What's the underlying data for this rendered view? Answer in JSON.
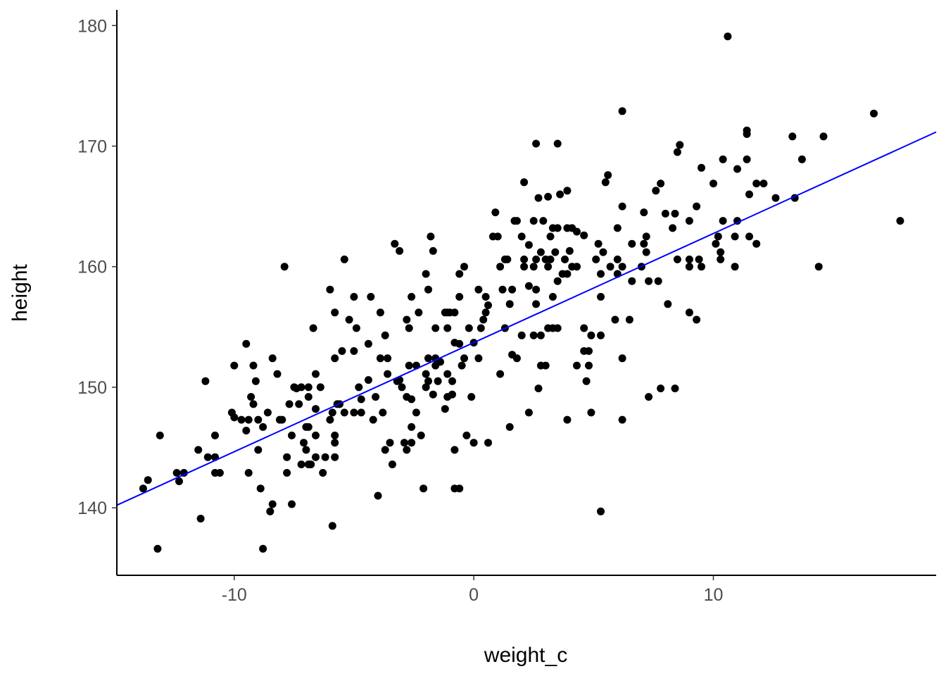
{
  "chart_data": {
    "type": "scatter",
    "xlabel": "weight_c",
    "ylabel": "height",
    "xlim": [
      -14.9,
      19.3
    ],
    "ylim": [
      134.4,
      181.3
    ],
    "x_ticks": [
      -10,
      0,
      10
    ],
    "x_tick_labels": [
      "-10",
      "0",
      "10"
    ],
    "y_ticks": [
      140,
      150,
      160,
      170,
      180
    ],
    "y_tick_labels": [
      "140",
      "150",
      "160",
      "170",
      "180"
    ],
    "grid": false,
    "legend": "none",
    "colors": {
      "points": "#000000",
      "fit_line": "#0000ff",
      "axis": "#000000"
    },
    "fit_line": {
      "intercept": 153.7,
      "slope": 0.905
    },
    "points": [
      [
        10.6,
        179.1
      ],
      [
        6.2,
        172.9
      ],
      [
        16.7,
        172.7
      ],
      [
        11.4,
        171.3
      ],
      [
        11.4,
        171.0
      ],
      [
        13.3,
        170.8
      ],
      [
        14.6,
        170.8
      ],
      [
        2.6,
        170.2
      ],
      [
        3.5,
        170.2
      ],
      [
        8.6,
        170.1
      ],
      [
        8.5,
        169.5
      ],
      [
        10.4,
        168.9
      ],
      [
        11.4,
        168.9
      ],
      [
        13.7,
        168.9
      ],
      [
        9.5,
        168.2
      ],
      [
        11.0,
        168.1
      ],
      [
        5.6,
        167.6
      ],
      [
        2.1,
        167.0
      ],
      [
        5.5,
        167.0
      ],
      [
        7.8,
        166.9
      ],
      [
        10.0,
        166.9
      ],
      [
        11.8,
        166.9
      ],
      [
        12.1,
        166.9
      ],
      [
        7.6,
        166.3
      ],
      [
        3.9,
        166.3
      ],
      [
        3.6,
        166.0
      ],
      [
        3.1,
        165.8
      ],
      [
        2.7,
        165.7
      ],
      [
        11.5,
        166.0
      ],
      [
        12.6,
        165.7
      ],
      [
        13.4,
        165.7
      ],
      [
        6.2,
        165.0
      ],
      [
        9.3,
        165.0
      ],
      [
        0.9,
        164.5
      ],
      [
        7.1,
        164.5
      ],
      [
        8.0,
        164.4
      ],
      [
        8.4,
        164.4
      ],
      [
        1.7,
        163.8
      ],
      [
        1.8,
        163.8
      ],
      [
        2.5,
        163.8
      ],
      [
        2.9,
        163.8
      ],
      [
        9.0,
        163.8
      ],
      [
        10.4,
        163.8
      ],
      [
        11.0,
        163.8
      ],
      [
        17.8,
        163.8
      ],
      [
        3.3,
        163.2
      ],
      [
        3.5,
        163.2
      ],
      [
        3.9,
        163.2
      ],
      [
        4.1,
        163.2
      ],
      [
        6.0,
        163.2
      ],
      [
        8.3,
        163.2
      ],
      [
        4.3,
        162.9
      ],
      [
        4.6,
        162.6
      ],
      [
        0.8,
        162.5
      ],
      [
        1.0,
        162.5
      ],
      [
        2.0,
        162.5
      ],
      [
        3.2,
        162.5
      ],
      [
        7.2,
        162.5
      ],
      [
        10.2,
        162.5
      ],
      [
        10.9,
        162.5
      ],
      [
        11.5,
        162.5
      ],
      [
        -1.8,
        162.5
      ],
      [
        -3.3,
        161.9
      ],
      [
        11.8,
        161.9
      ],
      [
        5.2,
        161.9
      ],
      [
        6.6,
        161.9
      ],
      [
        7.1,
        161.9
      ],
      [
        2.3,
        161.8
      ],
      [
        10.1,
        161.9
      ],
      [
        -3.1,
        161.3
      ],
      [
        -1.7,
        161.3
      ],
      [
        4.0,
        161.3
      ],
      [
        2.8,
        161.2
      ],
      [
        3.4,
        161.2
      ],
      [
        5.4,
        161.2
      ],
      [
        7.2,
        161.2
      ],
      [
        10.3,
        161.2
      ],
      [
        1.3,
        160.6
      ],
      [
        1.4,
        160.6
      ],
      [
        2.1,
        160.6
      ],
      [
        2.6,
        160.6
      ],
      [
        3.0,
        160.6
      ],
      [
        3.2,
        160.6
      ],
      [
        3.8,
        160.6
      ],
      [
        5.1,
        160.6
      ],
      [
        6.0,
        160.6
      ],
      [
        8.5,
        160.6
      ],
      [
        9.0,
        160.6
      ],
      [
        9.4,
        160.6
      ],
      [
        10.3,
        160.6
      ],
      [
        -5.4,
        160.6
      ],
      [
        1.1,
        160.0
      ],
      [
        2.1,
        160.0
      ],
      [
        2.5,
        160.0
      ],
      [
        3.1,
        160.0
      ],
      [
        4.1,
        160.0
      ],
      [
        4.3,
        160.0
      ],
      [
        5.7,
        160.0
      ],
      [
        6.2,
        160.0
      ],
      [
        7.0,
        160.0
      ],
      [
        9.0,
        160.0
      ],
      [
        9.5,
        160.0
      ],
      [
        10.9,
        160.0
      ],
      [
        14.4,
        160.0
      ],
      [
        -0.4,
        160.0
      ],
      [
        -7.9,
        160.0
      ],
      [
        -0.6,
        159.4
      ],
      [
        -2.0,
        159.4
      ],
      [
        3.7,
        159.4
      ],
      [
        3.9,
        159.4
      ],
      [
        6.0,
        159.4
      ],
      [
        5.3,
        159.4
      ],
      [
        3.5,
        158.8
      ],
      [
        6.6,
        158.8
      ],
      [
        7.3,
        158.8
      ],
      [
        7.7,
        158.8
      ],
      [
        2.3,
        158.4
      ],
      [
        2.6,
        158.1
      ],
      [
        -6.0,
        158.1
      ],
      [
        -1.9,
        158.1
      ],
      [
        0.2,
        158.1
      ],
      [
        1.2,
        158.1
      ],
      [
        1.6,
        158.1
      ],
      [
        3.3,
        157.5
      ],
      [
        5.3,
        157.5
      ],
      [
        -5.0,
        157.5
      ],
      [
        -4.3,
        157.5
      ],
      [
        -2.6,
        157.5
      ],
      [
        0.5,
        157.5
      ],
      [
        -0.6,
        157.5
      ],
      [
        8.1,
        156.9
      ],
      [
        2.6,
        156.9
      ],
      [
        1.5,
        156.9
      ],
      [
        0.6,
        156.8
      ],
      [
        -1.1,
        156.2
      ],
      [
        -1.0,
        156.2
      ],
      [
        -1.2,
        156.2
      ],
      [
        -0.8,
        156.2
      ],
      [
        0.5,
        156.2
      ],
      [
        -3.9,
        156.2
      ],
      [
        -2.3,
        156.2
      ],
      [
        -5.8,
        156.2
      ],
      [
        9.0,
        156.2
      ],
      [
        -2.8,
        155.6
      ],
      [
        -5.2,
        155.6
      ],
      [
        0.4,
        155.6
      ],
      [
        5.9,
        155.6
      ],
      [
        6.5,
        155.6
      ],
      [
        9.3,
        155.6
      ],
      [
        -0.2,
        154.9
      ],
      [
        1.3,
        154.9
      ],
      [
        0.3,
        154.9
      ],
      [
        -1.6,
        154.9
      ],
      [
        -1.1,
        154.9
      ],
      [
        -4.9,
        154.9
      ],
      [
        -2.7,
        154.9
      ],
      [
        3.1,
        154.9
      ],
      [
        3.3,
        154.9
      ],
      [
        3.5,
        154.9
      ],
      [
        4.6,
        154.9
      ],
      [
        -6.7,
        154.9
      ],
      [
        2.0,
        154.3
      ],
      [
        2.5,
        154.3
      ],
      [
        2.8,
        154.3
      ],
      [
        -3.7,
        154.3
      ],
      [
        4.9,
        154.3
      ],
      [
        5.3,
        154.3
      ],
      [
        0.0,
        153.7
      ],
      [
        -0.8,
        153.7
      ],
      [
        -0.6,
        153.6
      ],
      [
        -4.4,
        153.6
      ],
      [
        -9.5,
        153.6
      ],
      [
        -5.5,
        153.0
      ],
      [
        -5.0,
        153.0
      ],
      [
        4.6,
        153.0
      ],
      [
        4.8,
        153.0
      ],
      [
        1.6,
        152.7
      ],
      [
        0.2,
        152.4
      ],
      [
        -3.9,
        152.4
      ],
      [
        -3.6,
        152.4
      ],
      [
        -1.9,
        152.4
      ],
      [
        -1.6,
        152.4
      ],
      [
        -0.4,
        152.4
      ],
      [
        1.8,
        152.4
      ],
      [
        6.2,
        152.4
      ],
      [
        -8.4,
        152.4
      ],
      [
        -5.8,
        152.4
      ],
      [
        -1.4,
        152.1
      ],
      [
        4.8,
        151.8
      ],
      [
        2.8,
        151.8
      ],
      [
        3.0,
        151.8
      ],
      [
        -2.4,
        151.8
      ],
      [
        -2.7,
        151.8
      ],
      [
        -10.0,
        151.8
      ],
      [
        -9.2,
        151.8
      ],
      [
        4.3,
        151.8
      ],
      [
        -0.5,
        151.8
      ],
      [
        -1.6,
        151.8
      ],
      [
        -8.2,
        151.1
      ],
      [
        -3.6,
        151.1
      ],
      [
        1.1,
        151.1
      ],
      [
        -1.1,
        151.1
      ],
      [
        -6.6,
        151.1
      ],
      [
        -2.0,
        151.1
      ],
      [
        -4.4,
        150.6
      ],
      [
        -3.1,
        150.6
      ],
      [
        -3.2,
        150.5
      ],
      [
        -11.2,
        150.5
      ],
      [
        -9.1,
        150.5
      ],
      [
        4.7,
        150.5
      ],
      [
        -0.9,
        150.5
      ],
      [
        -1.5,
        150.5
      ],
      [
        -1.9,
        150.5
      ],
      [
        -4.8,
        150.0
      ],
      [
        -3.0,
        150.0
      ],
      [
        -7.5,
        150.0
      ],
      [
        -7.2,
        150.0
      ],
      [
        -6.9,
        150.0
      ],
      [
        -6.4,
        150.0
      ],
      [
        -2.0,
        150.0
      ],
      [
        -7.4,
        149.9
      ],
      [
        2.7,
        149.9
      ],
      [
        7.8,
        149.9
      ],
      [
        8.4,
        149.9
      ],
      [
        -1.7,
        149.4
      ],
      [
        -0.9,
        149.4
      ],
      [
        -4.1,
        149.2
      ],
      [
        -2.8,
        149.2
      ],
      [
        -0.1,
        149.2
      ],
      [
        7.3,
        149.2
      ],
      [
        -9.3,
        149.2
      ],
      [
        -6.9,
        149.2
      ],
      [
        -1.1,
        149.2
      ],
      [
        -4.7,
        149.0
      ],
      [
        -2.6,
        149.0
      ],
      [
        -5.6,
        148.6
      ],
      [
        -5.7,
        148.6
      ],
      [
        -9.2,
        148.6
      ],
      [
        -7.3,
        148.6
      ],
      [
        -7.7,
        148.6
      ],
      [
        -6.6,
        148.2
      ],
      [
        -1.2,
        148.2
      ],
      [
        -2.4,
        147.9
      ],
      [
        -3.8,
        147.9
      ],
      [
        -5.0,
        147.9
      ],
      [
        -4.7,
        147.9
      ],
      [
        -5.4,
        147.9
      ],
      [
        -5.9,
        147.9
      ],
      [
        -8.6,
        147.9
      ],
      [
        -10.1,
        147.9
      ],
      [
        2.3,
        147.9
      ],
      [
        4.9,
        147.9
      ],
      [
        -10.0,
        147.5
      ],
      [
        -9.4,
        147.3
      ],
      [
        -9.7,
        147.3
      ],
      [
        -8.1,
        147.3
      ],
      [
        -8.0,
        147.3
      ],
      [
        -9.0,
        147.3
      ],
      [
        -4.2,
        147.3
      ],
      [
        -6.0,
        147.3
      ],
      [
        3.9,
        147.3
      ],
      [
        6.2,
        147.3
      ],
      [
        -2.6,
        146.7
      ],
      [
        -6.9,
        146.7
      ],
      [
        -7.0,
        146.7
      ],
      [
        -8.8,
        146.7
      ],
      [
        -9.5,
        146.4
      ],
      [
        -5.8,
        146.0
      ],
      [
        -10.8,
        146.0
      ],
      [
        -13.1,
        146.0
      ],
      [
        -7.6,
        146.0
      ],
      [
        -6.6,
        146.0
      ],
      [
        -2.2,
        146.0
      ],
      [
        -0.3,
        146.0
      ],
      [
        1.5,
        146.7
      ],
      [
        -3.5,
        145.4
      ],
      [
        -2.9,
        145.4
      ],
      [
        -2.6,
        145.4
      ],
      [
        -7.1,
        145.4
      ],
      [
        -5.8,
        145.4
      ],
      [
        0.0,
        145.4
      ],
      [
        0.6,
        145.4
      ],
      [
        -0.8,
        144.8
      ],
      [
        -7.0,
        144.8
      ],
      [
        -9.0,
        144.8
      ],
      [
        -11.5,
        144.8
      ],
      [
        -3.7,
        144.8
      ],
      [
        -2.8,
        144.8
      ],
      [
        -5.8,
        144.2
      ],
      [
        -6.6,
        144.2
      ],
      [
        -6.2,
        144.2
      ],
      [
        -7.8,
        144.2
      ],
      [
        -11.1,
        144.2
      ],
      [
        -10.8,
        144.2
      ],
      [
        -6.9,
        143.6
      ],
      [
        -6.8,
        143.6
      ],
      [
        -3.4,
        143.6
      ],
      [
        -7.2,
        143.6
      ],
      [
        -10.8,
        142.9
      ],
      [
        -10.6,
        142.9
      ],
      [
        -12.4,
        142.9
      ],
      [
        -12.1,
        142.9
      ],
      [
        -9.4,
        142.9
      ],
      [
        -7.8,
        142.9
      ],
      [
        -6.3,
        142.9
      ],
      [
        -13.6,
        142.3
      ],
      [
        -12.3,
        142.2
      ],
      [
        -13.8,
        141.6
      ],
      [
        -8.9,
        141.6
      ],
      [
        -2.1,
        141.6
      ],
      [
        -0.8,
        141.6
      ],
      [
        -0.6,
        141.6
      ],
      [
        -4.0,
        141.0
      ],
      [
        -8.4,
        140.3
      ],
      [
        -7.6,
        140.3
      ],
      [
        -8.5,
        139.7
      ],
      [
        5.3,
        139.7
      ],
      [
        -11.4,
        139.1
      ],
      [
        -5.9,
        138.5
      ],
      [
        -13.2,
        136.6
      ],
      [
        -8.8,
        136.6
      ]
    ]
  }
}
